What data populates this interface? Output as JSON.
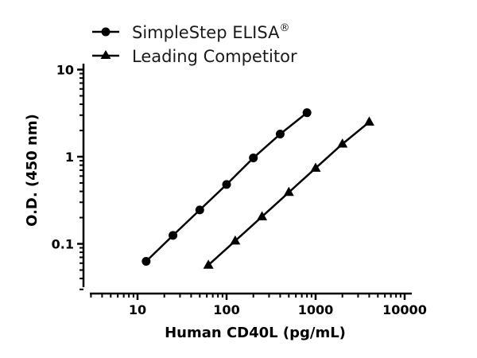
{
  "chart_data": {
    "type": "line",
    "title": "",
    "xlabel": "Human CD40L (pg/mL)",
    "ylabel": "O.D. (450 nm)",
    "xscale": "log",
    "yscale": "log",
    "xlim": [
      2.3,
      13000
    ],
    "ylim": [
      0.027,
      11
    ],
    "xticks": [
      10,
      100,
      1000,
      10000
    ],
    "xtick_labels": [
      "10",
      "100",
      "1000",
      "10000"
    ],
    "yticks": [
      0.1,
      1,
      10
    ],
    "ytick_labels": [
      "0.1",
      "1",
      "10"
    ],
    "grid": false,
    "legend_position": "top-left (above plot)",
    "series": [
      {
        "name": "SimpleStep ELISA®",
        "marker": "circle",
        "color": "#000000",
        "x": [
          12.5,
          25,
          50,
          100,
          200,
          400,
          800
        ],
        "y": [
          0.063,
          0.125,
          0.245,
          0.48,
          0.97,
          1.82,
          3.2
        ]
      },
      {
        "name": "Leading Competitor",
        "marker": "triangle",
        "color": "#000000",
        "x": [
          62.5,
          125,
          250,
          500,
          1000,
          2000,
          4000
        ],
        "y": [
          0.057,
          0.108,
          0.205,
          0.39,
          0.74,
          1.4,
          2.5
        ]
      }
    ]
  },
  "legend": {
    "items": [
      {
        "label": "SimpleStep ELISA",
        "superscript": "®",
        "marker": "circle"
      },
      {
        "label": "Leading Competitor",
        "superscript": "",
        "marker": "triangle"
      }
    ]
  }
}
